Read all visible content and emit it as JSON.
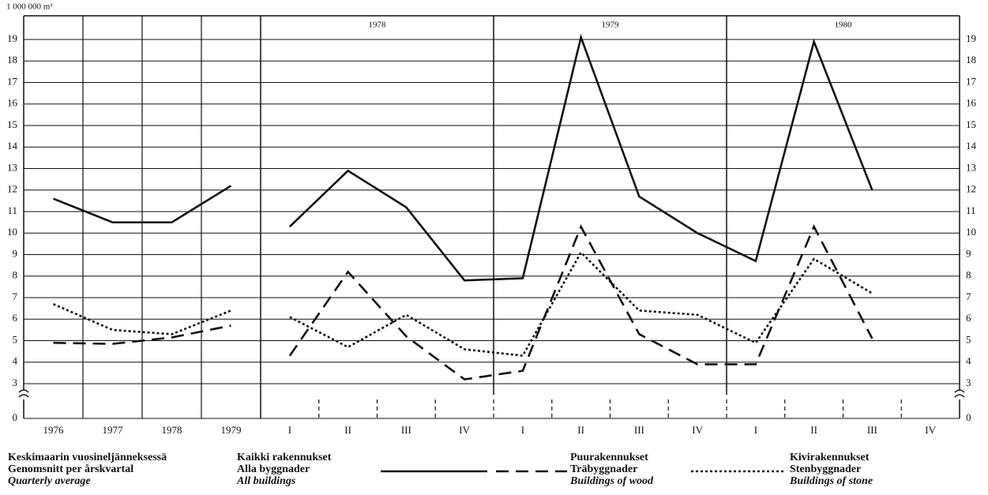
{
  "chart_data": [
    {
      "type": "line",
      "ylabel": "1 000 000 m³",
      "subtitle": [
        "Keskimaarin vuosineljänneksessä",
        "Genomsnitt per årskvartal",
        "Quarterly average"
      ],
      "categories": [
        "1976",
        "1977",
        "1978",
        "1979"
      ],
      "series": [
        {
          "style": "solid",
          "color": "#111111",
          "values": [
            11.6,
            10.5,
            10.5,
            12.2
          ]
        },
        {
          "style": "dashed",
          "color": "#111111",
          "values": [
            4.9,
            4.85,
            5.15,
            5.7
          ]
        },
        {
          "style": "dotted",
          "color": "#111111",
          "values": [
            6.7,
            5.5,
            5.3,
            6.4
          ]
        }
      ],
      "ylim": [
        0,
        19
      ],
      "axis_break": [
        0,
        3
      ],
      "yticks": [
        0,
        3,
        4,
        5,
        6,
        7,
        8,
        9,
        10,
        11,
        12,
        13,
        14,
        15,
        16,
        17,
        18,
        19
      ],
      "grid": true
    },
    {
      "type": "line",
      "groups": [
        "1978",
        "1979",
        "1980"
      ],
      "categories": [
        "I",
        "II",
        "III",
        "IV",
        "I",
        "II",
        "III",
        "IV",
        "I",
        "II",
        "III",
        "IV"
      ],
      "series": [
        {
          "name": "Kaikki rakennukset",
          "name_sv": "Alla byggnader",
          "name_en": "All buildings",
          "style": "solid",
          "color": "#111111",
          "values": [
            10.3,
            12.9,
            11.2,
            7.8,
            7.9,
            19.1,
            11.7,
            10.0,
            8.7,
            18.9,
            12.0,
            null
          ]
        },
        {
          "name": "Puurakennukset",
          "name_sv": "Träbyggnader",
          "name_en": "Buildings of wood",
          "style": "dashed",
          "color": "#111111",
          "values": [
            4.3,
            8.2,
            5.2,
            3.2,
            3.6,
            10.3,
            5.3,
            3.9,
            3.9,
            10.3,
            5.1,
            null
          ]
        },
        {
          "name": "Kivirakennukset",
          "name_sv": "Stenbyggnader",
          "name_en": "Buildings of stone",
          "style": "dotted",
          "color": "#111111",
          "values": [
            6.1,
            4.7,
            6.2,
            4.6,
            4.3,
            9.1,
            6.4,
            6.2,
            4.9,
            8.8,
            7.2,
            null
          ]
        }
      ],
      "ylim": [
        0,
        19
      ],
      "axis_break": [
        0,
        3
      ],
      "yticks": [
        0,
        3,
        4,
        5,
        6,
        7,
        8,
        9,
        10,
        11,
        12,
        13,
        14,
        15,
        16,
        17,
        18,
        19
      ],
      "grid": true
    }
  ]
}
